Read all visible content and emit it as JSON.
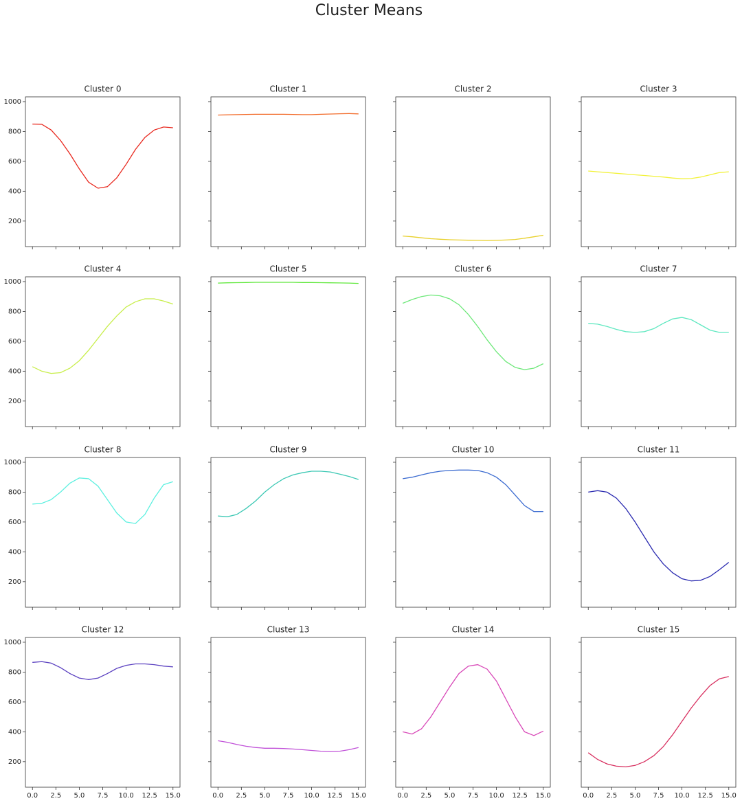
{
  "title": "Cluster Means",
  "shared_axes": {
    "xlim": [
      -0.75,
      15.75
    ],
    "xticks": [
      {
        "value": 0,
        "label": "0.0"
      },
      2.5,
      {
        "value": 5,
        "label": "5.0"
      },
      7.5,
      {
        "value": 10,
        "label": "10.0"
      },
      12.5,
      {
        "value": 15,
        "label": "15.0"
      }
    ],
    "ylim": [
      29,
      1032
    ],
    "yticks": [
      200,
      400,
      600,
      800,
      1000
    ]
  },
  "chart_data": [
    {
      "type": "line",
      "title": "Cluster 0",
      "color": "#e8281e",
      "x": [
        0,
        1,
        2,
        3,
        4,
        5,
        6,
        7,
        8,
        9,
        10,
        11,
        12,
        13,
        14,
        15
      ],
      "values": [
        850,
        848,
        810,
        740,
        650,
        550,
        460,
        420,
        430,
        490,
        580,
        680,
        760,
        810,
        830,
        825
      ]
    },
    {
      "type": "line",
      "title": "Cluster 1",
      "color": "#f26b2a",
      "x": [
        0,
        1,
        2,
        3,
        4,
        5,
        6,
        7,
        8,
        9,
        10,
        11,
        12,
        13,
        14,
        15
      ],
      "values": [
        910,
        912,
        913,
        914,
        915,
        915,
        915,
        915,
        914,
        913,
        913,
        915,
        917,
        919,
        920,
        918
      ]
    },
    {
      "type": "line",
      "title": "Cluster 2",
      "color": "#e8d02a",
      "x": [
        0,
        1,
        2,
        3,
        4,
        5,
        6,
        7,
        8,
        9,
        10,
        11,
        12,
        13,
        14,
        15
      ],
      "values": [
        100,
        95,
        88,
        82,
        78,
        75,
        73,
        72,
        71,
        70,
        71,
        73,
        77,
        85,
        95,
        105
      ]
    },
    {
      "type": "line",
      "title": "Cluster 3",
      "color": "#f2f23a",
      "x": [
        0,
        1,
        2,
        3,
        4,
        5,
        6,
        7,
        8,
        9,
        10,
        11,
        12,
        13,
        14,
        15
      ],
      "values": [
        535,
        530,
        525,
        520,
        515,
        510,
        505,
        500,
        495,
        488,
        483,
        485,
        495,
        510,
        525,
        530
      ]
    },
    {
      "type": "line",
      "title": "Cluster 4",
      "color": "#c8ee4a",
      "x": [
        0,
        1,
        2,
        3,
        4,
        5,
        6,
        7,
        8,
        9,
        10,
        11,
        12,
        13,
        14,
        15
      ],
      "values": [
        430,
        400,
        385,
        390,
        420,
        470,
        540,
        620,
        700,
        770,
        830,
        865,
        885,
        885,
        870,
        850
      ]
    },
    {
      "type": "line",
      "title": "Cluster 5",
      "color": "#5ee83a",
      "x": [
        0,
        1,
        2,
        3,
        4,
        5,
        6,
        7,
        8,
        9,
        10,
        11,
        12,
        13,
        14,
        15
      ],
      "values": [
        990,
        992,
        993,
        994,
        995,
        995,
        995,
        995,
        995,
        994,
        994,
        993,
        992,
        991,
        990,
        988
      ]
    },
    {
      "type": "line",
      "title": "Cluster 6",
      "color": "#6ee87a",
      "x": [
        0,
        1,
        2,
        3,
        4,
        5,
        6,
        7,
        8,
        9,
        10,
        11,
        12,
        13,
        14,
        15
      ],
      "values": [
        855,
        880,
        900,
        910,
        905,
        885,
        845,
        780,
        700,
        610,
        530,
        465,
        425,
        410,
        420,
        450
      ]
    },
    {
      "type": "line",
      "title": "Cluster 7",
      "color": "#5ee8c0",
      "x": [
        0,
        1,
        2,
        3,
        4,
        5,
        6,
        7,
        8,
        9,
        10,
        11,
        12,
        13,
        14,
        15
      ],
      "values": [
        720,
        715,
        700,
        680,
        665,
        660,
        665,
        685,
        720,
        750,
        760,
        745,
        710,
        675,
        660,
        660
      ]
    },
    {
      "type": "line",
      "title": "Cluster 8",
      "color": "#5ef0e0",
      "x": [
        0,
        1,
        2,
        3,
        4,
        5,
        6,
        7,
        8,
        9,
        10,
        11,
        12,
        13,
        14,
        15
      ],
      "values": [
        720,
        725,
        750,
        800,
        860,
        895,
        890,
        840,
        750,
        660,
        600,
        590,
        650,
        760,
        850,
        870
      ]
    },
    {
      "type": "line",
      "title": "Cluster 9",
      "color": "#3cc8b4",
      "x": [
        0,
        1,
        2,
        3,
        4,
        5,
        6,
        7,
        8,
        9,
        10,
        11,
        12,
        13,
        14,
        15
      ],
      "values": [
        640,
        635,
        650,
        690,
        740,
        800,
        850,
        890,
        915,
        930,
        940,
        940,
        935,
        920,
        905,
        885
      ]
    },
    {
      "type": "line",
      "title": "Cluster 10",
      "color": "#3a6ad0",
      "x": [
        0,
        1,
        2,
        3,
        4,
        5,
        6,
        7,
        8,
        9,
        10,
        11,
        12,
        13,
        14,
        15
      ],
      "values": [
        890,
        900,
        915,
        930,
        940,
        945,
        948,
        948,
        945,
        930,
        900,
        850,
        780,
        710,
        670,
        670
      ]
    },
    {
      "type": "line",
      "title": "Cluster 11",
      "color": "#2a2ab0",
      "x": [
        0,
        1,
        2,
        3,
        4,
        5,
        6,
        7,
        8,
        9,
        10,
        11,
        12,
        13,
        14,
        15
      ],
      "values": [
        800,
        810,
        800,
        760,
        690,
        600,
        500,
        400,
        320,
        260,
        220,
        205,
        210,
        235,
        280,
        330
      ]
    },
    {
      "type": "line",
      "title": "Cluster 12",
      "color": "#5a40c0",
      "x": [
        0,
        1,
        2,
        3,
        4,
        5,
        6,
        7,
        8,
        9,
        10,
        11,
        12,
        13,
        14,
        15
      ],
      "values": [
        865,
        870,
        860,
        830,
        790,
        760,
        750,
        760,
        790,
        825,
        845,
        855,
        855,
        850,
        840,
        835
      ]
    },
    {
      "type": "line",
      "title": "Cluster 13",
      "color": "#c050d8",
      "x": [
        0,
        1,
        2,
        3,
        4,
        5,
        6,
        7,
        8,
        9,
        10,
        11,
        12,
        13,
        14,
        15
      ],
      "values": [
        340,
        330,
        315,
        303,
        295,
        290,
        290,
        288,
        285,
        280,
        275,
        270,
        268,
        270,
        280,
        295
      ]
    },
    {
      "type": "line",
      "title": "Cluster 14",
      "color": "#d848b8",
      "x": [
        0,
        1,
        2,
        3,
        4,
        5,
        6,
        7,
        8,
        9,
        10,
        11,
        12,
        13,
        14,
        15
      ],
      "values": [
        400,
        385,
        420,
        500,
        600,
        700,
        790,
        840,
        850,
        820,
        740,
        620,
        500,
        400,
        375,
        405
      ]
    },
    {
      "type": "line",
      "title": "Cluster 15",
      "color": "#d83060",
      "x": [
        0,
        1,
        2,
        3,
        4,
        5,
        6,
        7,
        8,
        9,
        10,
        11,
        12,
        13,
        14,
        15
      ],
      "values": [
        260,
        215,
        185,
        170,
        165,
        175,
        200,
        240,
        300,
        380,
        470,
        560,
        640,
        710,
        755,
        770
      ]
    }
  ]
}
